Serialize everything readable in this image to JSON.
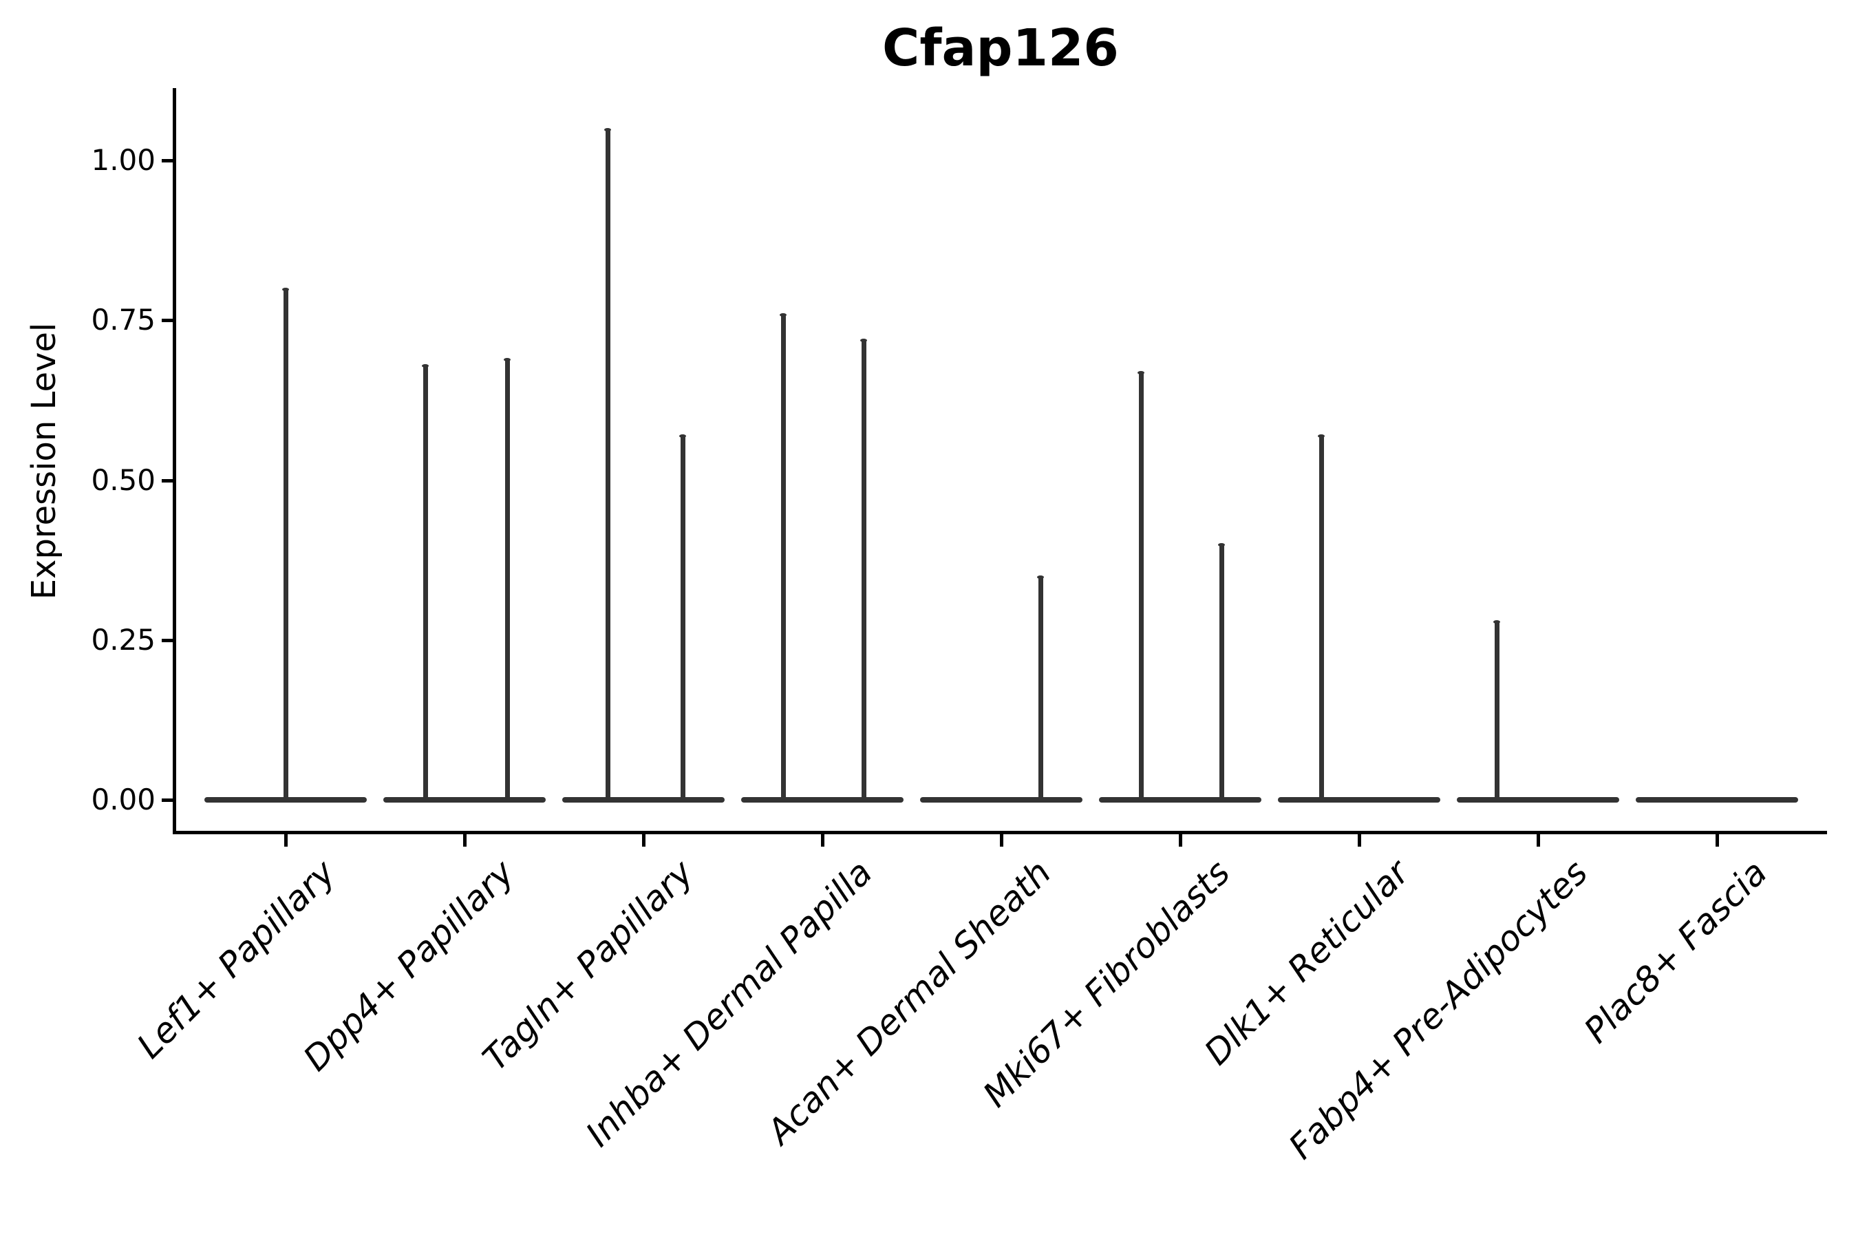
{
  "figure": {
    "title": "Cfap126",
    "y_axis_label": "Expression Level"
  },
  "chart_data": {
    "type": "violin",
    "title": "Cfap126",
    "xlabel": "",
    "ylabel": "Expression Level",
    "ylim": [
      -0.05,
      1.11
    ],
    "yticks": [
      1.0,
      0.75,
      0.5,
      0.25,
      0.0
    ],
    "ytick_labels": [
      "1.00",
      "0.75",
      "0.50",
      "0.25",
      "0.00"
    ],
    "grid": false,
    "legend": null,
    "categories": [
      "Lef1+ Papillary",
      "Dpp4+ Papillary",
      "Tagln+ Papillary",
      "Inhba+ Dermal Papilla",
      "Acan+ Dermal Sheath",
      "Mki67+ Fibroblasts",
      "Dlk1+ Reticular",
      "Fabp4+ Pre-Adipocytes",
      "Plac8+ Fascia"
    ],
    "violins": [
      {
        "category": "Lef1+ Papillary",
        "baseline": 0.0,
        "spikes": [
          {
            "x_offset": 0.0,
            "max_expression": 0.8
          }
        ]
      },
      {
        "category": "Dpp4+ Papillary",
        "baseline": 0.0,
        "spikes": [
          {
            "x_offset": -0.22,
            "max_expression": 0.68
          },
          {
            "x_offset": 0.24,
            "max_expression": 0.69
          }
        ]
      },
      {
        "category": "Tagln+ Papillary",
        "baseline": 0.0,
        "spikes": [
          {
            "x_offset": -0.2,
            "max_expression": 1.05
          },
          {
            "x_offset": 0.22,
            "max_expression": 0.57
          }
        ]
      },
      {
        "category": "Inhba+ Dermal Papilla",
        "baseline": 0.0,
        "spikes": [
          {
            "x_offset": -0.22,
            "max_expression": 0.76
          },
          {
            "x_offset": 0.23,
            "max_expression": 0.72
          }
        ]
      },
      {
        "category": "Acan+ Dermal Sheath",
        "baseline": 0.0,
        "spikes": [
          {
            "x_offset": 0.22,
            "max_expression": 0.35
          }
        ]
      },
      {
        "category": "Mki67+ Fibroblasts",
        "baseline": 0.0,
        "spikes": [
          {
            "x_offset": -0.22,
            "max_expression": 0.67
          },
          {
            "x_offset": 0.23,
            "max_expression": 0.4
          }
        ]
      },
      {
        "category": "Dlk1+ Reticular",
        "baseline": 0.0,
        "spikes": [
          {
            "x_offset": -0.21,
            "max_expression": 0.57
          }
        ]
      },
      {
        "category": "Fabp4+ Pre-Adipocytes",
        "baseline": 0.0,
        "spikes": [
          {
            "x_offset": -0.23,
            "max_expression": 0.28
          }
        ]
      },
      {
        "category": "Plac8+ Fascia",
        "baseline": 0.0,
        "spikes": []
      }
    ]
  },
  "style": {
    "violin_color": "#333333",
    "axis_color": "#000000",
    "text_color": "#000000",
    "background": "#ffffff",
    "title_bold": true,
    "x_labels_italic": true,
    "x_label_rotation_deg": 45
  }
}
